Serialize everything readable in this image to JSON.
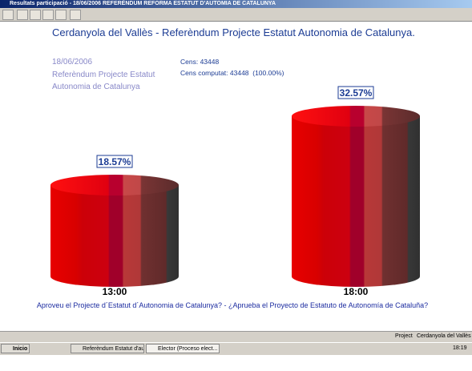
{
  "window": {
    "title": "Resultats participació - 18/06/2006 REFERÈNDUM REFORMA ESTATUT D'AUTOMIA DE CATALUNYA"
  },
  "header": {
    "title": "Cerdanyola del Vallès - Referèndum Projecte Estatut Autonomia de Catalunya.",
    "date": "18/06/2006",
    "election_line1": "Referèndum Projecte Estatut",
    "election_line2": "Autonomia de Catalunya",
    "cens": "Cens: 43448",
    "cens_computat": "Cens computat: 43448  (100.00%)"
  },
  "chart_data": {
    "type": "cylinder",
    "categories": [
      "13:00",
      "18:00"
    ],
    "values": [
      18.57,
      32.57
    ],
    "value_labels": [
      "18.57%",
      "32.57%"
    ]
  },
  "question": "Aproveu el Projecte d´Estatut d´Autonomia de Catalunya? - ¿Aprueba el Proyecto de Estatuto de Autonomía de Cataluña?",
  "status_bar": {
    "label": "Project",
    "value": "Cerdanyola del Vallès"
  },
  "taskbar": {
    "start": "Inicio",
    "tasks": [
      "Referèndum Estatut d'aut...",
      "Elector (Proceso elect..."
    ],
    "clock": "18:19"
  }
}
